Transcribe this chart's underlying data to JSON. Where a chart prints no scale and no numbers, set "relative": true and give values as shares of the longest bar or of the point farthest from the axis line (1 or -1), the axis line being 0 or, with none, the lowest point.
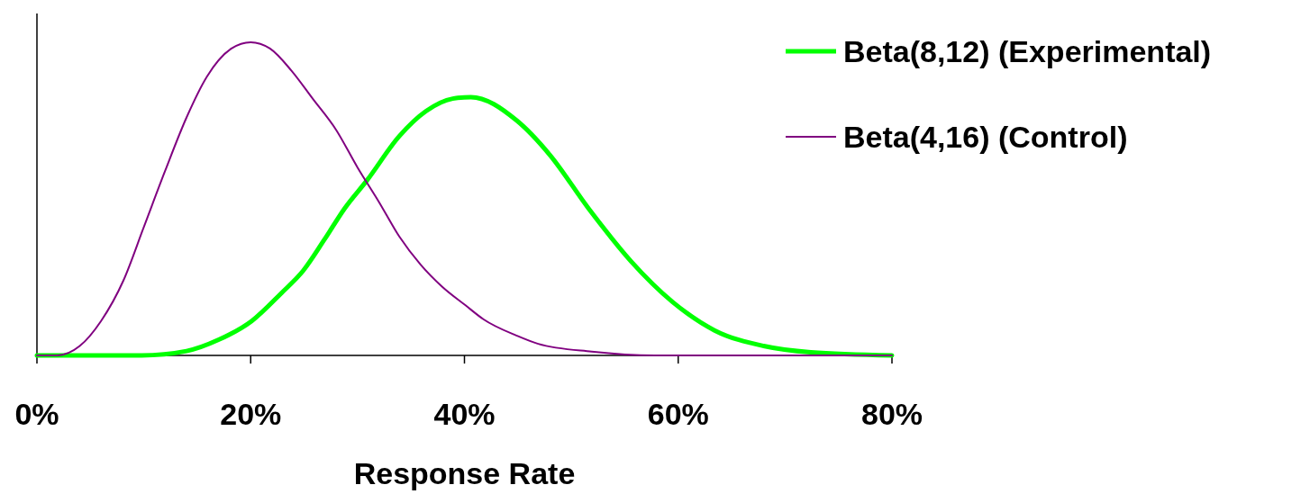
{
  "chart_data": {
    "type": "line",
    "xlabel": "Response Rate",
    "relative": true,
    "xlim": [
      0,
      80
    ],
    "xticks": [
      {
        "value": 0,
        "label": "0%"
      },
      {
        "value": 20,
        "label": "20%"
      },
      {
        "value": 40,
        "label": "40%"
      },
      {
        "value": 60,
        "label": "60%"
      },
      {
        "value": 80,
        "label": "80%"
      }
    ],
    "legend": "top right",
    "grid": false,
    "marker": "none",
    "line_style": "solid",
    "series": [
      {
        "name": "Beta(8,12) (Experimental)",
        "color": "#00ff00",
        "x": [
          0,
          9.8,
          14,
          17,
          20.1,
          22.9,
          24.9,
          26.9,
          28.8,
          30.9,
          33.9,
          36.4,
          38.9,
          40.6,
          44.9,
          48,
          51.6,
          55.6,
          59.5,
          63.4,
          68,
          72.4,
          80
        ],
        "values": [
          0,
          0,
          0.014,
          0.05,
          0.11,
          0.2,
          0.27,
          0.37,
          0.47,
          0.56,
          0.7,
          0.78,
          0.82,
          0.825,
          0.75,
          0.64,
          0.47,
          0.3,
          0.17,
          0.08,
          0.03,
          0.01,
          0
        ]
      },
      {
        "name": "Beta(4,16) (Control)",
        "color": "#800080",
        "x": [
          0,
          1.9,
          4,
          6,
          8.1,
          10,
          12,
          14,
          15.9,
          18.2,
          20,
          21.8,
          23.8,
          25.8,
          28,
          30,
          32,
          33.9,
          35.9,
          37.9,
          40.1,
          41.8,
          44.9,
          46.9,
          51.9,
          57.8,
          80
        ],
        "values": [
          0,
          0,
          0.03,
          0.11,
          0.24,
          0.41,
          0.59,
          0.76,
          0.89,
          0.98,
          1,
          0.98,
          0.91,
          0.82,
          0.72,
          0.6,
          0.49,
          0.38,
          0.29,
          0.22,
          0.16,
          0.115,
          0.063,
          0.037,
          0.012,
          0,
          0
        ]
      }
    ]
  }
}
